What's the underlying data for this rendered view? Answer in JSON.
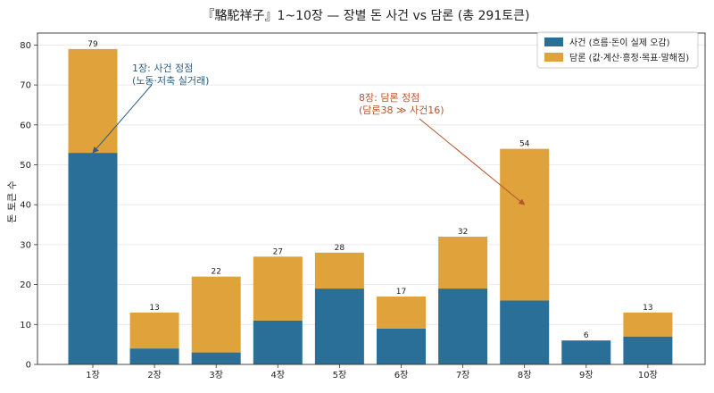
{
  "chart_data": {
    "type": "bar",
    "stacked": true,
    "title": "『駱駝祥子』1~10장 — 장별 돈 사건 vs 담론 (총 291토큰)",
    "xlabel": "",
    "ylabel": "돈 토큰 수",
    "ylim": [
      0,
      83
    ],
    "yticks": [
      0,
      10,
      20,
      30,
      40,
      50,
      60,
      70,
      80
    ],
    "grid": "horizontal",
    "legend_position": "top-right",
    "categories": [
      "1장",
      "2장",
      "3장",
      "4장",
      "5장",
      "6장",
      "7장",
      "8장",
      "9장",
      "10장"
    ],
    "series": [
      {
        "name": "사건 (흐름·돈이 실제 오감)",
        "color": "#2a6f97",
        "values": [
          53,
          4,
          3,
          11,
          19,
          9,
          19,
          16,
          6,
          7
        ]
      },
      {
        "name": "담론 (값·계산·흥정·목표·말해짐)",
        "color": "#e0a33c",
        "values": [
          26,
          9,
          19,
          16,
          9,
          8,
          13,
          38,
          0,
          6
        ]
      }
    ],
    "totals": [
      "79",
      "13",
      "22",
      "27",
      "28",
      "17",
      "32",
      "54",
      "6",
      "13"
    ],
    "annotations": [
      {
        "lines": [
          "1장: 사건 정점",
          "(노동·저축 실거래)"
        ],
        "color": "#2f5d7c",
        "arrow_to_category": 0,
        "arrow_to_y": 53
      },
      {
        "lines": [
          "8장: 담론 정점",
          "(담론38 ≫ 사건16)"
        ],
        "color": "#b5532a",
        "arrow_to_category": 7,
        "arrow_to_y": 40
      }
    ]
  }
}
